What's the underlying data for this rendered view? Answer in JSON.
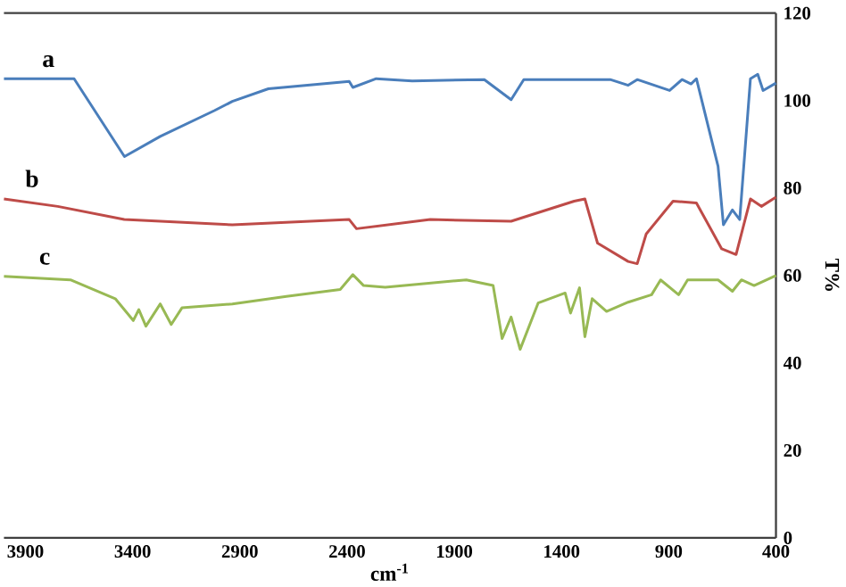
{
  "chart_data": {
    "type": "line",
    "xlabel": "cm$^{-1}$",
    "ylabel": "T%",
    "xlim": [
      4000,
      400
    ],
    "ylim": [
      0,
      120
    ],
    "xticks": [
      3900,
      3400,
      2900,
      2400,
      1900,
      1400,
      900,
      400
    ],
    "yticks": [
      0,
      20,
      40,
      60,
      80,
      100,
      120
    ],
    "grid": false,
    "legend": false,
    "marker": "none",
    "line_style": "solid",
    "series": [
      {
        "name": "a",
        "color": "#4a7ebb",
        "x": [
          4000,
          3673,
          3438,
          3271,
          3019,
          2935,
          2767,
          2390,
          2373,
          2264,
          2096,
          1760,
          1635,
          1576,
          1173,
          1089,
          1047,
          896,
          838,
          796,
          771,
          670,
          645,
          603,
          569,
          519,
          485,
          460,
          400
        ],
        "values": [
          105,
          105,
          87.2,
          91.8,
          97.7,
          99.8,
          102.7,
          104.4,
          103,
          105,
          104.5,
          104.8,
          100.2,
          104.8,
          104.8,
          103.5,
          104.8,
          102.3,
          104.8,
          103.8,
          105,
          85,
          71.6,
          75,
          72.8,
          105,
          106,
          102.3,
          104
        ]
      },
      {
        "name": "b",
        "color": "#be4b48",
        "x": [
          4000,
          3749,
          3439,
          2935,
          2390,
          2356,
          2012,
          1635,
          1341,
          1291,
          1232,
          1089,
          1047,
          1005,
          880,
          771,
          653,
          586,
          519,
          468,
          400
        ],
        "values": [
          77.5,
          75.8,
          72.8,
          71.6,
          72.8,
          70.7,
          72.8,
          72.4,
          77,
          77.5,
          67.4,
          63.2,
          62.7,
          69.5,
          77,
          76.6,
          66.1,
          64.8,
          77.5,
          75.8,
          77.9
        ]
      },
      {
        "name": "c",
        "color": "#98b954",
        "x": [
          4000,
          3690,
          3481,
          3397,
          3371,
          3338,
          3271,
          3220,
          3170,
          2935,
          2683,
          2432,
          2373,
          2323,
          2222,
          1844,
          1719,
          1677,
          1635,
          1593,
          1509,
          1383,
          1358,
          1316,
          1291,
          1257,
          1190,
          1089,
          980,
          938,
          854,
          812,
          670,
          603,
          561,
          502,
          400
        ],
        "values": [
          59.8,
          59,
          54.7,
          49.7,
          52.2,
          48.4,
          53.5,
          48.8,
          52.6,
          53.5,
          55.2,
          56.8,
          60.2,
          57.7,
          57.3,
          59,
          57.7,
          45.6,
          50.5,
          43.1,
          53.7,
          56,
          51.4,
          57.2,
          46,
          54.7,
          51.8,
          53.9,
          55.6,
          59,
          55.6,
          59,
          59,
          56.4,
          59,
          57.7,
          60
        ]
      }
    ]
  }
}
